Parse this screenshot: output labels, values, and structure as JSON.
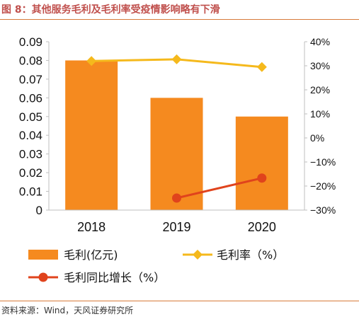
{
  "figure": {
    "title": "图 8：其他服务毛利及毛利率受疫情影响略有下滑",
    "source": "资料来源：Wind，天风证券研究所"
  },
  "colors": {
    "bar": "#f58a1f",
    "margin_line": "#f5b91c",
    "growth_line": "#e0431c",
    "title": "#c0504d",
    "rule": "#d77b3a",
    "axis": "#bfbfbf"
  },
  "chart_data": {
    "type": "bar",
    "categories": [
      "2018",
      "2019",
      "2020"
    ],
    "series": [
      {
        "name": "毛利(亿元)",
        "type": "bar",
        "axis": "left",
        "values": [
          0.08,
          0.06,
          0.05
        ]
      },
      {
        "name": "毛利率（%）",
        "type": "line",
        "axis": "right",
        "marker": "diamond",
        "values": [
          32,
          32.7,
          29.5
        ]
      },
      {
        "name": "毛利同比增长（%）",
        "type": "line",
        "axis": "right",
        "marker": "circle",
        "values": [
          null,
          -25,
          -16.7
        ]
      }
    ],
    "y_left": {
      "min": 0,
      "max": 0.09,
      "ticks": [
        0,
        0.01,
        0.02,
        0.03,
        0.04,
        0.05,
        0.06,
        0.07,
        0.08,
        0.09
      ],
      "tick_labels": [
        "0",
        "0.01",
        "0.02",
        "0.03",
        "0.04",
        "0.05",
        "0.06",
        "0.07",
        "0.08",
        "0.09"
      ]
    },
    "y_right": {
      "min": -30,
      "max": 40,
      "ticks": [
        -30,
        -20,
        -10,
        0,
        10,
        20,
        30,
        40
      ],
      "tick_labels": [
        "−30%",
        "−20%",
        "−10%",
        "0%",
        "10%",
        "20%",
        "30%",
        "40%"
      ]
    },
    "grid": false,
    "legend_position": "bottom"
  }
}
